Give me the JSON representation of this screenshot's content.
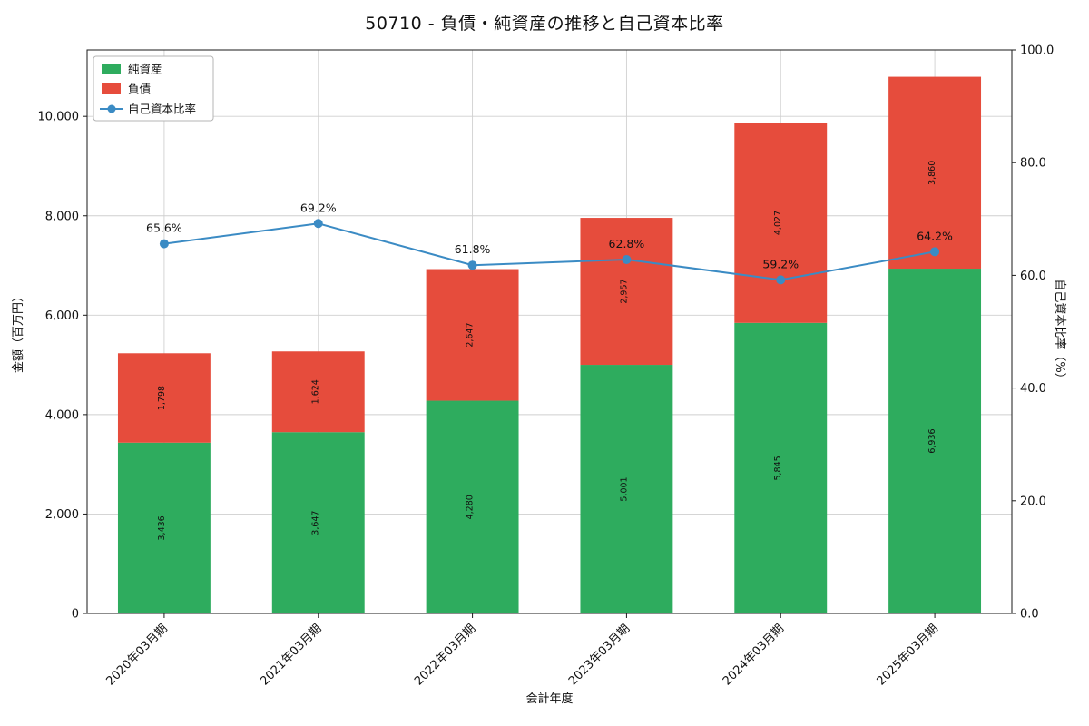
{
  "chart_data": {
    "type": "bar",
    "subtype": "stacked-bar-with-line",
    "title": "50710 - 負債・純資産の推移と自己資本比率",
    "xlabel": "会計年度",
    "ylabel_left": "金額（百万円）",
    "ylabel_right": "自己資本比率（%）",
    "categories": [
      "2020年03月期",
      "2021年03月期",
      "2022年03月期",
      "2023年03月期",
      "2024年03月期",
      "2025年03月期"
    ],
    "series": [
      {
        "name": "純資産",
        "type": "bar",
        "axis": "left",
        "color": "#2eac5e",
        "values": [
          3436,
          3647,
          4280,
          5001,
          5845,
          6936
        ]
      },
      {
        "name": "負債",
        "type": "bar",
        "axis": "left",
        "color": "#e64c3c",
        "values": [
          1798,
          1624,
          2647,
          2957,
          4027,
          3860
        ]
      },
      {
        "name": "自己資本比率",
        "type": "line",
        "axis": "right",
        "color": "#3b8bc4",
        "values": [
          65.6,
          69.2,
          61.8,
          62.8,
          59.2,
          64.2
        ]
      }
    ],
    "bar_totals": [
      5234,
      5271,
      6927,
      7958,
      9872,
      10796
    ],
    "ylim_left": [
      0,
      11336
    ],
    "yticks_left": [
      0,
      2000,
      4000,
      6000,
      8000,
      10000
    ],
    "ylim_right": [
      0,
      100
    ],
    "yticks_right": [
      0.0,
      20.0,
      40.0,
      60.0,
      80.0,
      100.0
    ],
    "grid": true,
    "legend_position": "upper-left",
    "colors": {
      "grid": "#cfcfcf",
      "spine": "#1a1a1a",
      "ratio_label": "#3b8bc4",
      "legend_border": "#b5b5b5"
    }
  }
}
